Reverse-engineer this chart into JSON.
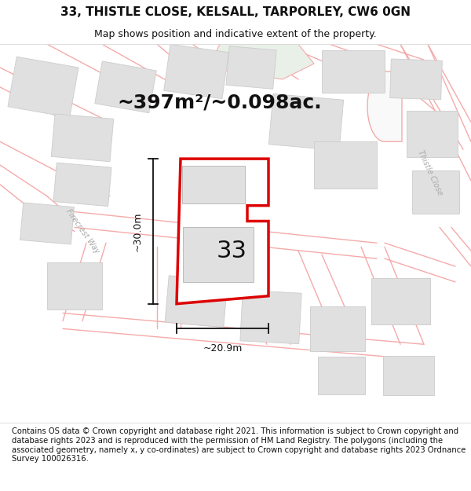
{
  "title": "33, THISTLE CLOSE, KELSALL, TARPORLEY, CW6 0GN",
  "subtitle": "Map shows position and indicative extent of the property.",
  "area_text": "~397m²/~0.098ac.",
  "plot_number": "33",
  "dim_width": "~20.9m",
  "dim_height": "~30.0m",
  "footer": "Contains OS data © Crown copyright and database right 2021. This information is subject to Crown copyright and database rights 2023 and is reproduced with the permission of HM Land Registry. The polygons (including the associated geometry, namely x, y co-ordinates) are subject to Crown copyright and database rights 2023 Ordnance Survey 100026316.",
  "bg_color": "#ffffff",
  "map_bg": "#f9f9f9",
  "plot_fill": "#ffffff",
  "plot_edge": "#dd0000",
  "road_color": "#f5aaaa",
  "road_fill": "#f5aaaa",
  "building_color": "#e0e0e0",
  "building_edge": "#cccccc",
  "green_color": "#e8f0e8",
  "title_fontsize": 11,
  "subtitle_fontsize": 9,
  "area_fontsize": 18,
  "plot_label_fontsize": 22,
  "footer_fontsize": 7.2,
  "road_label_color": "#aaaaaa",
  "dim_line_color": "#111111"
}
